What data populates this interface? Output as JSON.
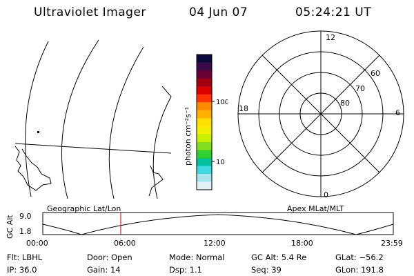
{
  "header": {
    "instrument": "Ultraviolet Imager",
    "date": "04 Jun 07",
    "time": "05:24:21 UT"
  },
  "colorbar": {
    "label": "photon cm⁻²s⁻¹",
    "ticks": [
      "100",
      "10"
    ],
    "colors": [
      "#0a0a3a",
      "#3a0a4a",
      "#6a0033",
      "#a00010",
      "#dd0000",
      "#ff3300",
      "#ff8a00",
      "#ffb000",
      "#ffe000",
      "#f0f000",
      "#c8f000",
      "#80e020",
      "#30d030",
      "#00c0a0",
      "#40d8e0",
      "#a8e4ec",
      "#e0f0f4"
    ]
  },
  "polar_plot": {
    "mlt_labels": {
      "top": "12",
      "bottom": "0",
      "left": "18",
      "right": "6"
    },
    "lat_labels": [
      "60",
      "70",
      "80"
    ]
  },
  "timeline": {
    "left_title": "Geographic Lat/Lon",
    "right_title": "Apex MLat/MLT",
    "axis_label": "GC Alt",
    "y_ticks": [
      "9.0",
      "1.8"
    ],
    "x_ticks": [
      "00:00",
      "06:00",
      "12:00",
      "18:00",
      "23:59"
    ],
    "marker_color": "#cc0000"
  },
  "info": {
    "filter": "Flt: LBHL",
    "ip": "IP: 36.0",
    "door": "Door: Open",
    "gain": "Gain: 14",
    "mode": "Mode: Normal",
    "dsp": "Dsp:    1.1",
    "gc_alt": "GC Alt: 5.4 Re",
    "seq": "Seq: 39",
    "glat": "GLat: −56.2",
    "glon": "GLon: 191.8"
  }
}
